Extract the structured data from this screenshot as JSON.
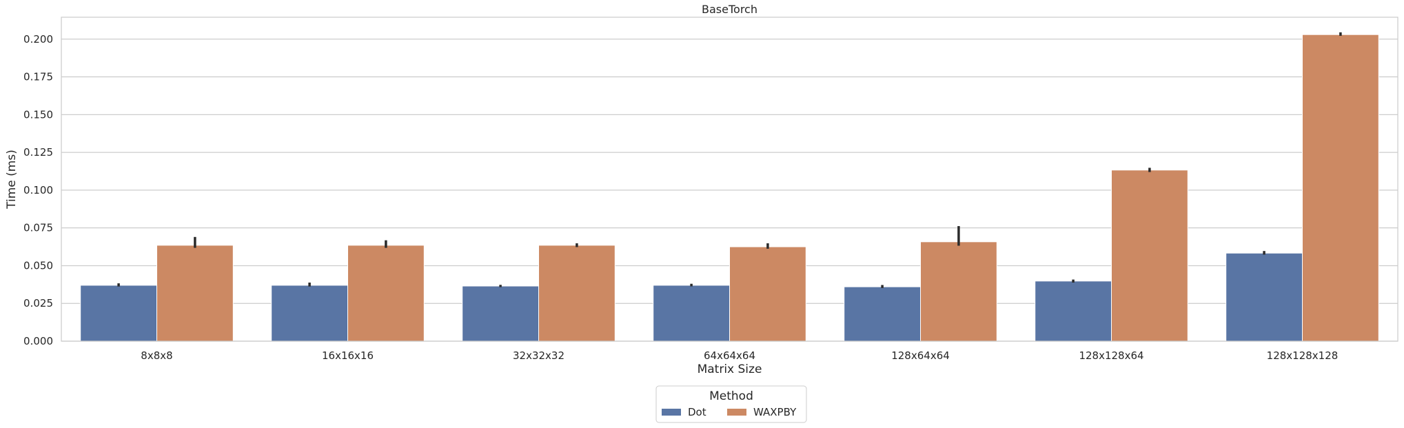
{
  "chart_data": {
    "type": "bar",
    "title": "BaseTorch",
    "xlabel": "Matrix Size",
    "ylabel": "Time (ms)",
    "categories": [
      "8x8x8",
      "16x16x16",
      "32x32x32",
      "64x64x64",
      "128x64x64",
      "128x128x64",
      "128x128x128"
    ],
    "ylim": [
      0,
      0.2145
    ],
    "yticks": [
      "0.000",
      "0.025",
      "0.050",
      "0.075",
      "0.100",
      "0.125",
      "0.150",
      "0.175",
      "0.200"
    ],
    "grid": true,
    "series": [
      {
        "name": "Dot",
        "color": "#5975a4",
        "values": [
          0.037,
          0.037,
          0.0365,
          0.037,
          0.036,
          0.0398,
          0.0583
        ],
        "error_low": [
          0.0362,
          0.0362,
          0.0358,
          0.0363,
          0.0352,
          0.0388,
          0.0573
        ],
        "error_high": [
          0.0383,
          0.0388,
          0.0373,
          0.038,
          0.0372,
          0.0408,
          0.0597
        ]
      },
      {
        "name": "WAXPBY",
        "color": "#cc8963",
        "values": [
          0.0635,
          0.0635,
          0.0635,
          0.0625,
          0.0658,
          0.1133,
          0.203
        ],
        "error_low": [
          0.0618,
          0.0618,
          0.0623,
          0.0612,
          0.0632,
          0.112,
          0.2022
        ],
        "error_high": [
          0.069,
          0.0668,
          0.0648,
          0.0648,
          0.0762,
          0.1148,
          0.2045
        ]
      }
    ],
    "legend": {
      "title": "Method",
      "placement": "bottom-center"
    }
  }
}
